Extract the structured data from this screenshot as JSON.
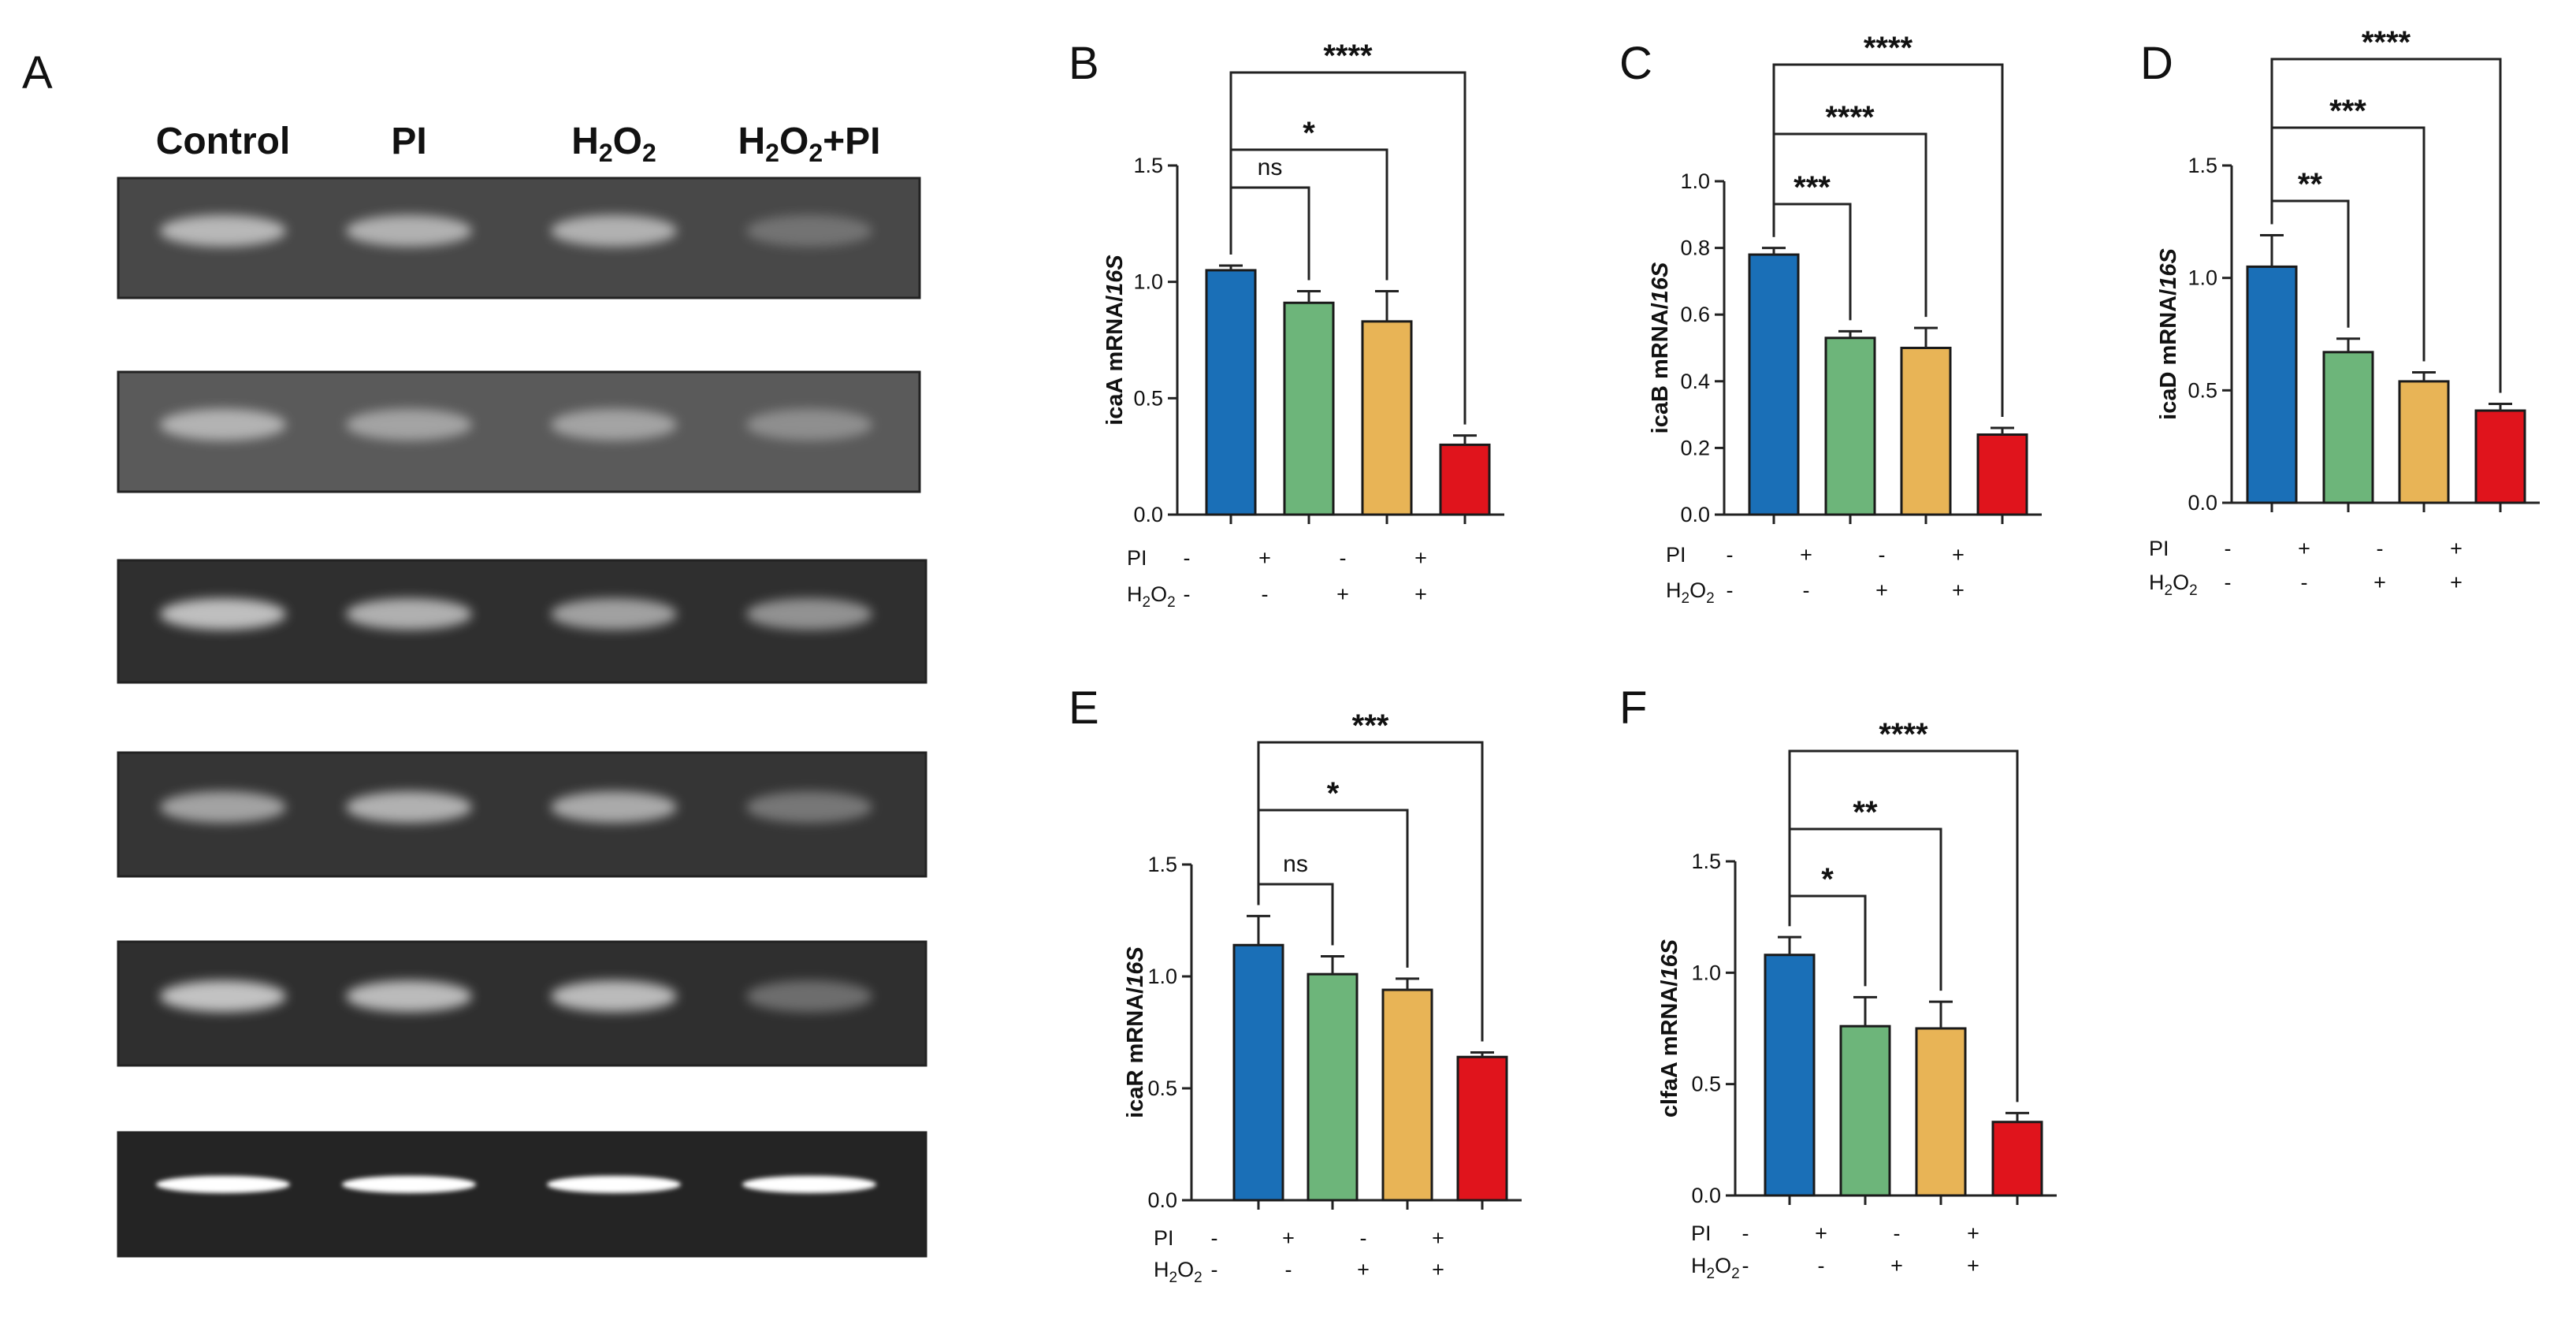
{
  "gel": {
    "letter": "A",
    "lanes": [
      "Control",
      "PI",
      "H2O2",
      "H2O2+PI"
    ],
    "lane_html": [
      {
        "base": "Control"
      },
      {
        "base": "PI"
      },
      {
        "base": "H",
        "sub1": "2",
        "mid": "O",
        "sub2": "2",
        "tail": ""
      },
      {
        "base": "H",
        "sub1": "2",
        "mid": "O",
        "sub2": "2",
        "tail": "+PI"
      }
    ],
    "rows": [
      {
        "bg": "#484848",
        "band_color": "#d2d2d2",
        "intensity": [
          0.9,
          0.85,
          0.85,
          0.35
        ]
      },
      {
        "bg": "#5a5a5a",
        "band_color": "#cfcfcf",
        "intensity": [
          0.85,
          0.7,
          0.7,
          0.5
        ]
      },
      {
        "bg": "#2f2f2f",
        "band_color": "#d8d8d8",
        "intensity": [
          0.95,
          0.85,
          0.75,
          0.65
        ]
      },
      {
        "bg": "#353535",
        "band_color": "#d8d8d8",
        "intensity": [
          0.75,
          0.85,
          0.8,
          0.45
        ]
      },
      {
        "bg": "#2f2f2f",
        "band_color": "#dcdcdc",
        "intensity": [
          0.95,
          0.9,
          0.9,
          0.4
        ]
      },
      {
        "bg": "#242424",
        "band_color": "#ffffff",
        "intensity": [
          1.0,
          1.0,
          1.0,
          1.0
        ]
      }
    ]
  },
  "condition_labels": {
    "pi": "PI",
    "h2o2_base": "H",
    "h2o2_sub1": "2",
    "h2o2_mid": "O",
    "h2o2_sub2": "2"
  },
  "conditions": {
    "pi": [
      "-",
      "+",
      "-",
      "+"
    ],
    "h2o2": [
      "-",
      "-",
      "+",
      "+"
    ]
  },
  "colors": {
    "bars": [
      "#1a6fb7",
      "#6db57a",
      "#e8b456",
      "#e0141c"
    ]
  },
  "chart_data": [
    {
      "panel": "B",
      "type": "bar",
      "gene": "icaA",
      "ylabel_suffix": " mRNA/",
      "ylabel_ref": "16S",
      "values": [
        1.05,
        0.91,
        0.83,
        0.3
      ],
      "errors": [
        0.02,
        0.05,
        0.13,
        0.04
      ],
      "ylim": [
        0,
        1.5
      ],
      "yticks": [
        "0.0",
        "0.5",
        "1.0",
        "1.5"
      ],
      "yticks_values": [
        0,
        0.5,
        1.0,
        1.5
      ],
      "comparisons": [
        {
          "to": 1,
          "label": "ns"
        },
        {
          "to": 2,
          "label": "*"
        },
        {
          "to": 3,
          "label": "****"
        }
      ]
    },
    {
      "panel": "C",
      "type": "bar",
      "gene": "icaB",
      "ylabel_suffix": " mRNA/",
      "ylabel_ref": "16S",
      "values": [
        0.78,
        0.53,
        0.5,
        0.24
      ],
      "errors": [
        0.02,
        0.02,
        0.06,
        0.02
      ],
      "ylim": [
        0,
        1.0
      ],
      "yticks": [
        "0.0",
        "0.2",
        "0.4",
        "0.6",
        "0.8",
        "1.0"
      ],
      "yticks_values": [
        0,
        0.2,
        0.4,
        0.6,
        0.8,
        1.0
      ],
      "comparisons": [
        {
          "to": 1,
          "label": "***"
        },
        {
          "to": 2,
          "label": "****"
        },
        {
          "to": 3,
          "label": "****"
        }
      ]
    },
    {
      "panel": "D",
      "type": "bar",
      "gene": "icaD",
      "ylabel_suffix": " mRNA/",
      "ylabel_ref": "16S",
      "values": [
        1.05,
        0.67,
        0.54,
        0.41
      ],
      "errors": [
        0.14,
        0.06,
        0.04,
        0.03
      ],
      "ylim": [
        0,
        1.5
      ],
      "yticks": [
        "0.0",
        "0.5",
        "1.0",
        "1.5"
      ],
      "yticks_values": [
        0,
        0.5,
        1.0,
        1.5
      ],
      "comparisons": [
        {
          "to": 1,
          "label": "**"
        },
        {
          "to": 2,
          "label": "***"
        },
        {
          "to": 3,
          "label": "****"
        }
      ]
    },
    {
      "panel": "E",
      "type": "bar",
      "gene": "icaR",
      "ylabel_suffix": " mRNA/",
      "ylabel_ref": "16S",
      "values": [
        1.14,
        1.01,
        0.94,
        0.64
      ],
      "errors": [
        0.13,
        0.08,
        0.05,
        0.02
      ],
      "ylim": [
        0,
        1.5
      ],
      "yticks": [
        "0.0",
        "0.5",
        "1.0",
        "1.5"
      ],
      "yticks_values": [
        0,
        0.5,
        1.0,
        1.5
      ],
      "comparisons": [
        {
          "to": 1,
          "label": "ns"
        },
        {
          "to": 2,
          "label": "*"
        },
        {
          "to": 3,
          "label": "***"
        }
      ]
    },
    {
      "panel": "F",
      "type": "bar",
      "gene": "clfaA",
      "ylabel_suffix": " mRNA/",
      "ylabel_ref": "16S",
      "values": [
        1.08,
        0.76,
        0.75,
        0.33
      ],
      "errors": [
        0.08,
        0.13,
        0.12,
        0.04
      ],
      "ylim": [
        0,
        1.5
      ],
      "yticks": [
        "0.0",
        "0.5",
        "1.0",
        "1.5"
      ],
      "yticks_values": [
        0,
        0.5,
        1.0,
        1.5
      ],
      "comparisons": [
        {
          "to": 1,
          "label": "*"
        },
        {
          "to": 2,
          "label": "**"
        },
        {
          "to": 3,
          "label": "****"
        }
      ]
    }
  ]
}
